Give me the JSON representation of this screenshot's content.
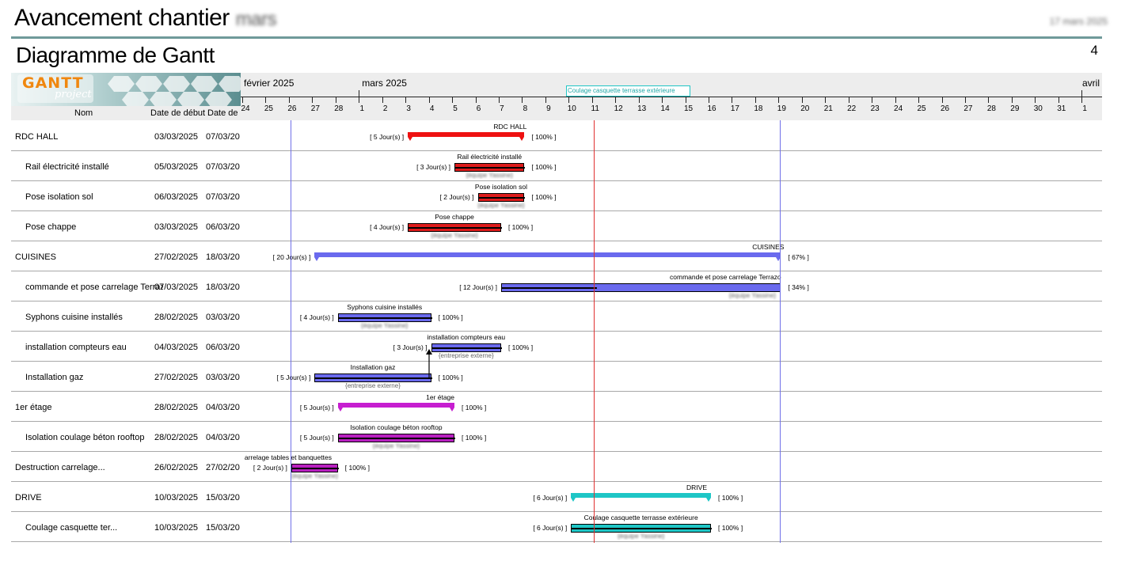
{
  "header": {
    "title": "Avancement chantier",
    "title_redacted": "mars",
    "date_redacted": "17 mars 2025",
    "subtitle": "Diagramme de Gantt",
    "page_number": "4"
  },
  "logo": {
    "brand": "GANTT",
    "sub": "project"
  },
  "columns": {
    "name": "Nom",
    "start": "Date de début",
    "end": "Date de"
  },
  "months": [
    {
      "label": "février 2025"
    },
    {
      "label": "mars 2025"
    },
    {
      "label": "avril"
    }
  ],
  "days": [
    "24",
    "25",
    "26",
    "27",
    "28",
    "1",
    "2",
    "3",
    "4",
    "5",
    "6",
    "7",
    "8",
    "9",
    "10",
    "11",
    "12",
    "13",
    "14",
    "15",
    "16",
    "17",
    "18",
    "19",
    "20",
    "21",
    "22",
    "23",
    "24",
    "25",
    "26",
    "27",
    "28",
    "29",
    "30",
    "31",
    "1"
  ],
  "header_legend": "Coulage casquette terrasse extérieure",
  "rows": [
    {
      "name": "RDC HALL",
      "start": "03/03/2025",
      "end": "07/03/202",
      "indent": 0,
      "summary": true,
      "color": "#ee1111",
      "from": 7,
      "to": 12,
      "progress": 100,
      "duration": "[ 5 Jour(s) ]",
      "pct": "[ 100% ]",
      "label": "RDC HALL",
      "resource": ""
    },
    {
      "name": "Rail électricité installé",
      "start": "05/03/2025",
      "end": "07/03/202",
      "indent": 1,
      "summary": false,
      "color": "#dd1a1a",
      "from": 9,
      "to": 12,
      "progress": 100,
      "duration": "[ 3 Jour(s) ]",
      "pct": "[ 100% ]",
      "label": "Rail électricité installé",
      "resource": "{équipe Yassine}"
    },
    {
      "name": "Pose isolation sol",
      "start": "06/03/2025",
      "end": "07/03/202",
      "indent": 1,
      "summary": false,
      "color": "#dd1a1a",
      "from": 10,
      "to": 12,
      "progress": 100,
      "duration": "[ 2 Jour(s) ]",
      "pct": "[ 100% ]",
      "label": "Pose isolation sol",
      "resource": "{équipe Yassine}"
    },
    {
      "name": "Pose chappe",
      "start": "03/03/2025",
      "end": "06/03/202",
      "indent": 1,
      "summary": false,
      "color": "#dd1a1a",
      "from": 7,
      "to": 11,
      "progress": 100,
      "duration": "[ 4 Jour(s) ]",
      "pct": "[ 100% ]",
      "label": "Pose chappe",
      "resource": "{équipe Yassine}"
    },
    {
      "name": "CUISINES",
      "start": "27/02/2025",
      "end": "18/03/202",
      "indent": 0,
      "summary": true,
      "color": "#6a6aee",
      "from": 3,
      "to": 23,
      "progress": 67,
      "duration": "[ 20 Jour(s) ]",
      "pct": "[ 67% ]",
      "label": "CUISINES",
      "resource": ""
    },
    {
      "name": "commande et pose carrelage Terrazo",
      "start": "07/03/2025",
      "end": "18/03/202",
      "indent": 1,
      "summary": false,
      "color": "#6a6aee",
      "from": 11,
      "to": 23,
      "progress": 34,
      "duration": "[ 12 Jour(s) ]",
      "pct": "[ 34% ]",
      "label": "commande et pose carrelage Terrazo",
      "resource": "{équipe Yassine}"
    },
    {
      "name": "Syphons cuisine installés",
      "start": "28/02/2025",
      "end": "03/03/202",
      "indent": 1,
      "summary": false,
      "color": "#6a6aee",
      "from": 4,
      "to": 8,
      "progress": 100,
      "duration": "[ 4 Jour(s) ]",
      "pct": "[ 100% ]",
      "label": "Syphons cuisine installés",
      "resource": "{équipe Yassine}"
    },
    {
      "name": "installation compteurs eau",
      "start": "04/03/2025",
      "end": "06/03/202",
      "indent": 1,
      "summary": false,
      "color": "#6a6aee",
      "from": 8,
      "to": 11,
      "progress": 100,
      "duration": "[ 3 Jour(s) ]",
      "pct": "[ 100% ]",
      "label": "installation compteurs eau",
      "resource": "{entreprise externe}"
    },
    {
      "name": "Installation gaz",
      "start": "27/02/2025",
      "end": "03/03/202",
      "indent": 1,
      "summary": false,
      "color": "#6a6aee",
      "from": 3,
      "to": 8,
      "progress": 100,
      "duration": "[ 5 Jour(s) ]",
      "pct": "[ 100% ]",
      "label": "Installation gaz",
      "resource": "{entreprise externe}"
    },
    {
      "name": "1er étage",
      "start": "28/02/2025",
      "end": "04/03/202",
      "indent": 0,
      "summary": true,
      "color": "#c61ed0",
      "from": 4,
      "to": 9,
      "progress": 100,
      "duration": "[ 5 Jour(s) ]",
      "pct": "[ 100% ]",
      "label": "1er étage",
      "resource": ""
    },
    {
      "name": "Isolation coulage béton rooftop",
      "start": "28/02/2025",
      "end": "04/03/202",
      "indent": 1,
      "summary": false,
      "color": "#b820c0",
      "from": 4,
      "to": 9,
      "progress": 100,
      "duration": "[ 5 Jour(s) ]",
      "pct": "[ 100% ]",
      "label": "Isolation coulage béton rooftop",
      "resource": "{équipe Yassine}"
    },
    {
      "name": "Destruction carrelage...",
      "start": "26/02/2025",
      "end": "27/02/202",
      "indent": 0,
      "summary": false,
      "color": "#b820c0",
      "from": 2,
      "to": 4,
      "progress": 100,
      "duration": "[ 2 Jour(s) ]",
      "pct": "[ 100% ]",
      "label": "arrelage tables et banquettes",
      "resource": "{équipe Yassine}"
    },
    {
      "name": "DRIVE",
      "start": "10/03/2025",
      "end": "15/03/202",
      "indent": 0,
      "summary": true,
      "color": "#1ec6c6",
      "from": 14,
      "to": 20,
      "progress": 100,
      "duration": "[ 6 Jour(s) ]",
      "pct": "[ 100% ]",
      "label": "DRIVE",
      "resource": ""
    },
    {
      "name": "Coulage casquette ter...",
      "start": "10/03/2025",
      "end": "15/03/202",
      "indent": 1,
      "summary": false,
      "color": "#1ec6c6",
      "from": 14,
      "to": 20,
      "progress": 100,
      "duration": "[ 6 Jour(s) ]",
      "pct": "[ 100% ]",
      "label": "Coulage casquette terrasse extérieure",
      "resource": "{équipe Yassine}"
    }
  ],
  "markers": [
    {
      "kind": "project-start",
      "day_index": 2,
      "color": "#7070e8"
    },
    {
      "kind": "today",
      "day_index": 15,
      "color": "#e03030"
    },
    {
      "kind": "project-end",
      "day_index": 23,
      "color": "#7070e8"
    }
  ]
}
